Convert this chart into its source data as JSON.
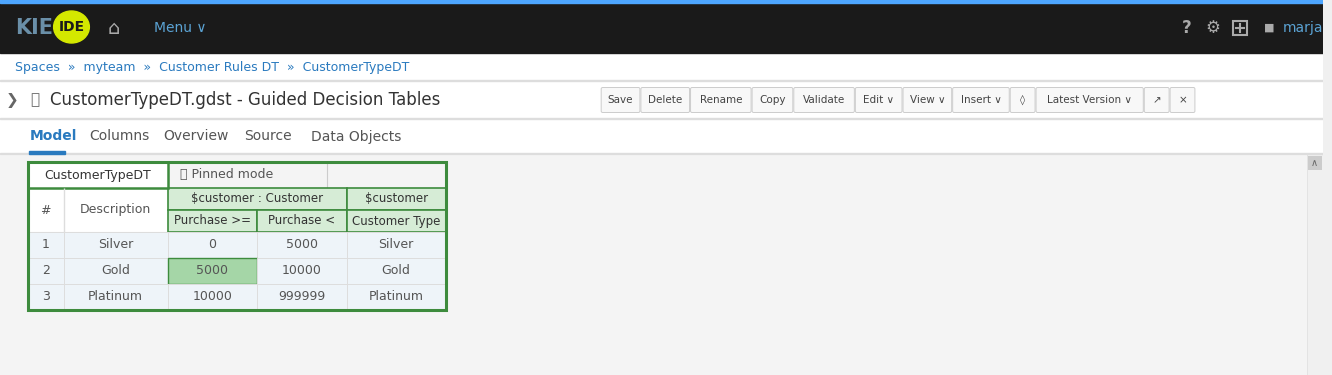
{
  "navbar_bg": "#1a1a1a",
  "kie_text": "KIE",
  "ide_text": "IDE",
  "ide_ellipse_color": "#d4e800",
  "ide_text_color": "#1a1a1a",
  "menu_text": "Menu ∨",
  "nav_icon_color": "#5ba3d4",
  "nav_right_text": "marja",
  "breadcrumb_text": "Spaces  »  myteam  »  Customer Rules DT  »  CustomerTypeDT",
  "breadcrumb_color": "#2a7abf",
  "title_text": "CustomerTypeDT.gdst - Guided Decision Tables",
  "buttons": [
    "Save",
    "Delete",
    "Rename",
    "Copy",
    "Validate",
    "Edit ∨",
    "View ∨",
    "Insert ∨",
    "◊",
    "Latest Version ∨",
    "↗",
    "×"
  ],
  "btn_widths": [
    36,
    46,
    58,
    38,
    58,
    44,
    46,
    54,
    22,
    105,
    22,
    22
  ],
  "tabs": [
    "Model",
    "Columns",
    "Overview",
    "Source",
    "Data Objects"
  ],
  "active_tab": "Model",
  "table_title": "CustomerTypeDT",
  "pinned_label": "📌 Pinned mode",
  "col_headers_top": [
    "$customer : Customer",
    "$customer"
  ],
  "col_headers_bottom": [
    "Purchase >=",
    "Purchase <",
    "Customer Type"
  ],
  "row_num_col": "#",
  "row_desc_col": "Description",
  "rows": [
    {
      "num": "1",
      "desc": "Silver",
      "purchase_gte": "0",
      "purchase_lt": "5000",
      "ctype": "Silver",
      "highlight": false
    },
    {
      "num": "2",
      "desc": "Gold",
      "purchase_gte": "5000",
      "purchase_lt": "10000",
      "ctype": "Gold",
      "highlight": true
    },
    {
      "num": "3",
      "desc": "Platinum",
      "purchase_gte": "10000",
      "purchase_lt": "999999",
      "ctype": "Platinum",
      "highlight": false
    }
  ],
  "green_border": "#3d8b3d",
  "green_header_bg": "#d6ecd6",
  "green_highlight_cell": "#a5d6a7",
  "white_bg": "#ffffff",
  "light_blue_row": "#eef4f9",
  "light_gray_bg": "#f4f4f4",
  "tab_active_color": "#2a7abf",
  "tab_underline_color": "#2a7abf",
  "page_bg": "#f0f0f0",
  "separator_line": "#dddddd",
  "top_blue_line": "#4da6ff",
  "button_bg": "#f8f8f8",
  "button_border": "#cccccc",
  "toolbar_bg": "#ffffff",
  "scrollbar_bg": "#f0f0f0",
  "scrollbar_handle": "#cccccc"
}
